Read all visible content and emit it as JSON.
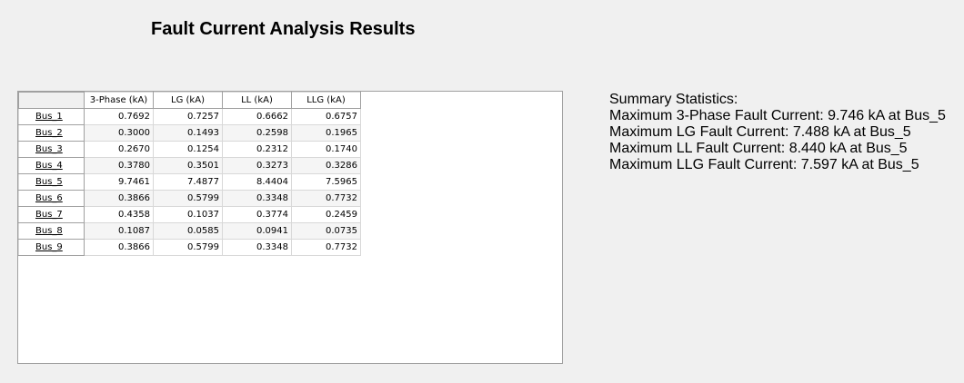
{
  "title": "Fault Current Analysis Results",
  "table": {
    "columns": [
      "3-Phase (kA)",
      "LG (kA)",
      "LL (kA)",
      "LLG (kA)"
    ],
    "rows": [
      {
        "bus": "Bus_1",
        "values": [
          "0.7692",
          "0.7257",
          "0.6662",
          "0.6757"
        ]
      },
      {
        "bus": "Bus_2",
        "values": [
          "0.3000",
          "0.1493",
          "0.2598",
          "0.1965"
        ]
      },
      {
        "bus": "Bus_3",
        "values": [
          "0.2670",
          "0.1254",
          "0.2312",
          "0.1740"
        ]
      },
      {
        "bus": "Bus_4",
        "values": [
          "0.3780",
          "0.3501",
          "0.3273",
          "0.3286"
        ]
      },
      {
        "bus": "Bus_5",
        "values": [
          "9.7461",
          "7.4877",
          "8.4404",
          "7.5965"
        ]
      },
      {
        "bus": "Bus_6",
        "values": [
          "0.3866",
          "0.5799",
          "0.3348",
          "0.7732"
        ]
      },
      {
        "bus": "Bus_7",
        "values": [
          "0.4358",
          "0.1037",
          "0.3774",
          "0.2459"
        ]
      },
      {
        "bus": "Bus_8",
        "values": [
          "0.1087",
          "0.0585",
          "0.0941",
          "0.0735"
        ]
      },
      {
        "bus": "Bus_9",
        "values": [
          "0.3866",
          "0.5799",
          "0.3348",
          "0.7732"
        ]
      }
    ]
  },
  "summary": {
    "heading": "Summary Statistics:",
    "lines": [
      "Maximum 3-Phase Fault Current: 9.746 kA at Bus_5",
      "Maximum LG Fault Current: 7.488 kA at Bus_5",
      "Maximum LL Fault Current: 8.440 kA at Bus_5",
      "Maximum LLG Fault Current: 7.597 kA at Bus_5"
    ]
  }
}
